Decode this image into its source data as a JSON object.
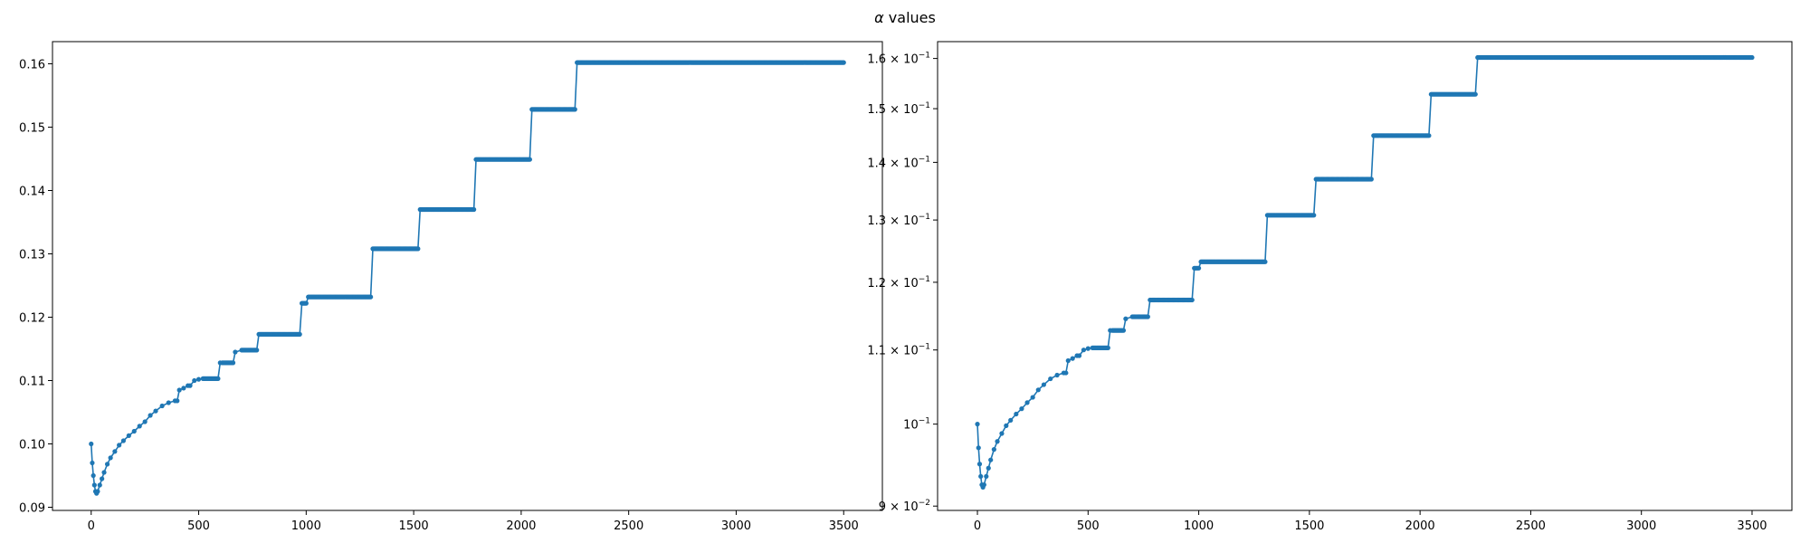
{
  "figure": {
    "title_symbol": "α",
    "title_text": " values"
  },
  "chart_data": [
    {
      "type": "line",
      "marker": "dot",
      "color": "#1f77b4",
      "yscale": "linear",
      "title": "",
      "xlabel": "",
      "ylabel": "",
      "grid": false,
      "xlim": [
        -180,
        3680
      ],
      "ylim": [
        0.0895,
        0.1635
      ],
      "xticks": [
        0,
        500,
        1000,
        1500,
        2000,
        2500,
        3000,
        3500
      ],
      "yticks": [
        0.09,
        0.1,
        0.11,
        0.12,
        0.13,
        0.14,
        0.15,
        0.16
      ],
      "ytick_labels": [
        "0.09",
        "0.10",
        "0.11",
        "0.12",
        "0.13",
        "0.14",
        "0.15",
        "0.16"
      ],
      "series": [
        {
          "name": "",
          "x": [
            0,
            5,
            10,
            15,
            20,
            25,
            30,
            40,
            50,
            60,
            75,
            90,
            110,
            130,
            150,
            175,
            200,
            225,
            250,
            275,
            300,
            330,
            360,
            390,
            400,
            410,
            430,
            450,
            460,
            480,
            500,
            520,
            590,
            600,
            610,
            660,
            670,
            700,
            770,
            780,
            810,
            970,
            980,
            1000,
            1010,
            1300,
            1310,
            1520,
            1530,
            1780,
            1790,
            2040,
            2050,
            2250,
            2260,
            3500
          ],
          "y": [
            0.1,
            0.097,
            0.095,
            0.0935,
            0.0925,
            0.0922,
            0.0925,
            0.0935,
            0.0945,
            0.0955,
            0.0968,
            0.0978,
            0.0988,
            0.0998,
            0.1005,
            0.1013,
            0.102,
            0.1028,
            0.1035,
            0.1045,
            0.1052,
            0.106,
            0.1065,
            0.1068,
            0.1068,
            0.1085,
            0.1088,
            0.1092,
            0.1092,
            0.11,
            0.1102,
            0.1103,
            0.1103,
            0.1128,
            0.1128,
            0.1128,
            0.1145,
            0.1148,
            0.1148,
            0.1173,
            0.1173,
            0.1173,
            0.1222,
            0.1222,
            0.1232,
            0.1232,
            0.1308,
            0.1308,
            0.137,
            0.137,
            0.1449,
            0.1449,
            0.1528,
            0.1528,
            0.1602,
            0.1602
          ]
        }
      ]
    },
    {
      "type": "line",
      "marker": "dot",
      "color": "#1f77b4",
      "yscale": "log",
      "title": "",
      "xlabel": "",
      "ylabel": "",
      "grid": false,
      "xlim": [
        -180,
        3680
      ],
      "ylim": [
        0.0895,
        0.1635
      ],
      "xticks": [
        0,
        500,
        1000,
        1500,
        2000,
        2500,
        3000,
        3500
      ],
      "yticks": [
        0.09,
        0.1,
        0.11,
        0.12,
        0.13,
        0.14,
        0.15,
        0.16
      ],
      "ytick_labels": [
        {
          "base": "9 × 10",
          "exp": "−2"
        },
        {
          "base": "10",
          "exp": "−1"
        },
        {
          "base": "1.1 × 10",
          "exp": "−1"
        },
        {
          "base": "1.2 × 10",
          "exp": "−1"
        },
        {
          "base": "1.3 × 10",
          "exp": "−1"
        },
        {
          "base": "1.4 × 10",
          "exp": "−1"
        },
        {
          "base": "1.5 × 10",
          "exp": "−1"
        },
        {
          "base": "1.6 × 10",
          "exp": "−1"
        }
      ],
      "series": [
        {
          "name": "",
          "x": [
            0,
            5,
            10,
            15,
            20,
            25,
            30,
            40,
            50,
            60,
            75,
            90,
            110,
            130,
            150,
            175,
            200,
            225,
            250,
            275,
            300,
            330,
            360,
            390,
            400,
            410,
            430,
            450,
            460,
            480,
            500,
            520,
            590,
            600,
            610,
            660,
            670,
            700,
            770,
            780,
            810,
            970,
            980,
            1000,
            1010,
            1300,
            1310,
            1520,
            1530,
            1780,
            1790,
            2040,
            2050,
            2250,
            2260,
            3500
          ],
          "y": [
            0.1,
            0.097,
            0.095,
            0.0935,
            0.0925,
            0.0922,
            0.0925,
            0.0935,
            0.0945,
            0.0955,
            0.0968,
            0.0978,
            0.0988,
            0.0998,
            0.1005,
            0.1013,
            0.102,
            0.1028,
            0.1035,
            0.1045,
            0.1052,
            0.106,
            0.1065,
            0.1068,
            0.1068,
            0.1085,
            0.1088,
            0.1092,
            0.1092,
            0.11,
            0.1102,
            0.1103,
            0.1103,
            0.1128,
            0.1128,
            0.1128,
            0.1145,
            0.1148,
            0.1148,
            0.1173,
            0.1173,
            0.1173,
            0.1222,
            0.1222,
            0.1232,
            0.1232,
            0.1308,
            0.1308,
            0.137,
            0.137,
            0.1449,
            0.1449,
            0.1528,
            0.1528,
            0.1602,
            0.1602
          ]
        }
      ]
    }
  ]
}
